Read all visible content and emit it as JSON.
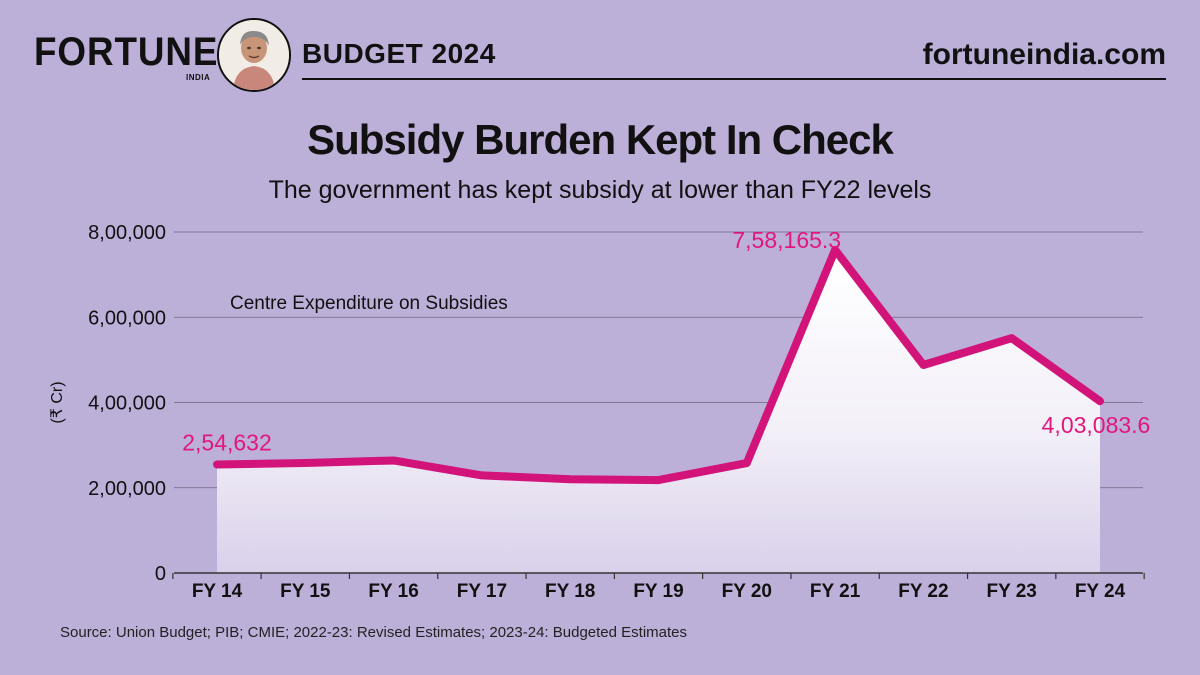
{
  "header": {
    "brand": "FORTUNE",
    "brand_sub": "INDIA",
    "edition": "BUDGET 2024",
    "site": "fortuneindia.com"
  },
  "title": "Subsidy Burden Kept In Check",
  "subtitle": "The government has kept subsidy at lower than FY22 levels",
  "source": "Source: Union Budget; PIB; CMIE; 2022-23: Revised Estimates; 2023-24: Budgeted Estimates",
  "colors": {
    "background": "#bcafd8",
    "line": "#d1137a",
    "label": "#e0177e",
    "fill_top": "#ffffff",
    "fill_bottom": "#d9d0ea"
  },
  "chart_data": {
    "type": "area",
    "ylabel": "(₹ Cr)",
    "series_label": "Centre Expenditure on Subsidies",
    "categories": [
      "FY 14",
      "FY 15",
      "FY 16",
      "FY 17",
      "FY 18",
      "FY 19",
      "FY 20",
      "FY 21",
      "FY 22",
      "FY 23",
      "FY 24"
    ],
    "series": [
      {
        "name": "Centre Expenditure on Subsidies",
        "values": [
          254632,
          258000,
          264000,
          229000,
          220000,
          218000,
          258000,
          758165.3,
          488000,
          551000,
          403083.6
        ]
      }
    ],
    "ylim": [
      0,
      800000
    ],
    "yticks": [
      0,
      200000,
      400000,
      600000,
      800000
    ],
    "ytick_labels": [
      "0",
      "2,00,000",
      "4,00,000",
      "6,00,000",
      "8,00,000"
    ],
    "data_labels": [
      {
        "index": 0,
        "text": "2,54,632"
      },
      {
        "index": 7,
        "text": "7,58,165.3"
      },
      {
        "index": 10,
        "text": "4,03,083.6"
      }
    ],
    "grid": true
  }
}
